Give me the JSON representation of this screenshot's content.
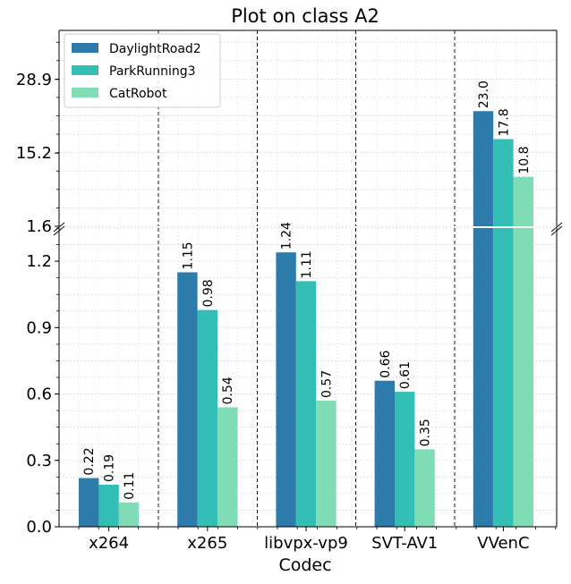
{
  "chart_data": {
    "type": "bar",
    "title": "Plot on class A2",
    "xlabel": "Codec",
    "ylabel": "",
    "categories": [
      "x264",
      "x265",
      "libvpx-vp9",
      "SVT-AV1",
      "VVenC"
    ],
    "series": [
      {
        "name": "DaylightRoad2",
        "values": [
          0.22,
          1.15,
          1.24,
          0.66,
          23.0
        ],
        "labels": [
          "0.22",
          "1.15",
          "1.24",
          "0.66",
          "23.0"
        ],
        "color": "#2c7bab"
      },
      {
        "name": "ParkRunning3",
        "values": [
          0.19,
          0.98,
          1.11,
          0.61,
          17.8
        ],
        "labels": [
          "0.19",
          "0.98",
          "1.11",
          "0.61",
          "17.8"
        ],
        "color": "#33bfb6"
      },
      {
        "name": "CatRobot",
        "values": [
          0.11,
          0.54,
          0.57,
          0.35,
          10.8
        ],
        "labels": [
          "0.11",
          "0.54",
          "0.57",
          "0.35",
          "10.8"
        ],
        "color": "#7fdcb5"
      }
    ],
    "broken_axis": true,
    "lower_ylim": [
      0,
      1.35
    ],
    "upper_ylim": [
      1.6,
      38
    ],
    "lower_ticks": [
      "0.0",
      "0.3",
      "0.6",
      "0.9",
      "1.2"
    ],
    "upper_ticks": [
      "1.6",
      "15.2",
      "28.9"
    ],
    "grid": true,
    "legend_position": "top-left"
  }
}
